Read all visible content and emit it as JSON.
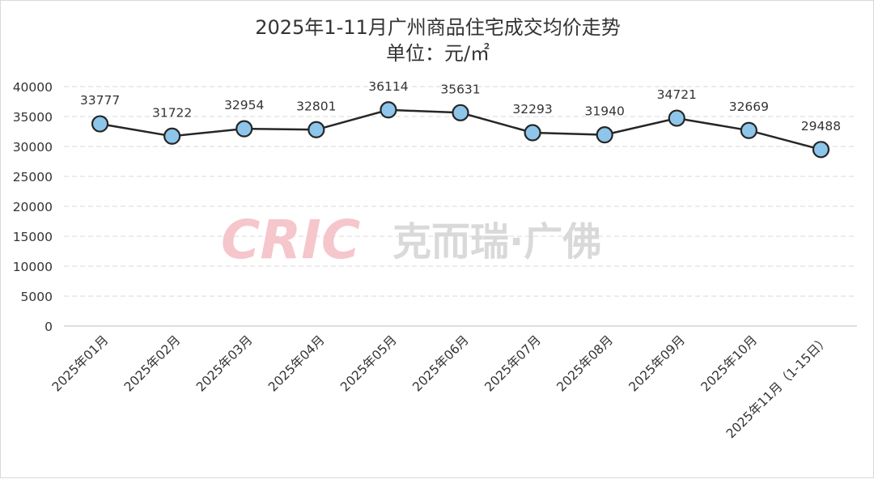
{
  "watermark": {
    "brand": "CRIC",
    "text": "克而瑞·广佛",
    "brand_color": "#f5c6cc",
    "text_color": "#d9d9d9"
  },
  "chart_data": {
    "type": "line",
    "title": "2025年1-11月广州商品住宅成交均价走势",
    "subtitle": "单位：元/㎡",
    "categories": [
      "2025年01月",
      "2025年02月",
      "2025年03月",
      "2025年04月",
      "2025年05月",
      "2025年06月",
      "2025年07月",
      "2025年08月",
      "2025年09月",
      "2025年10月",
      "2025年11月（1-15日）"
    ],
    "series": [
      {
        "values": [
          33777,
          31722,
          32954,
          32801,
          36114,
          35631,
          32293,
          31940,
          34721,
          32669,
          29488
        ]
      }
    ],
    "ylim": [
      0,
      40000
    ],
    "yticks": [
      0,
      5000,
      10000,
      15000,
      20000,
      25000,
      30000,
      35000,
      40000
    ],
    "grid": true,
    "legend": "none",
    "line_color": "#262626",
    "marker_color": "#8dc6ea"
  }
}
